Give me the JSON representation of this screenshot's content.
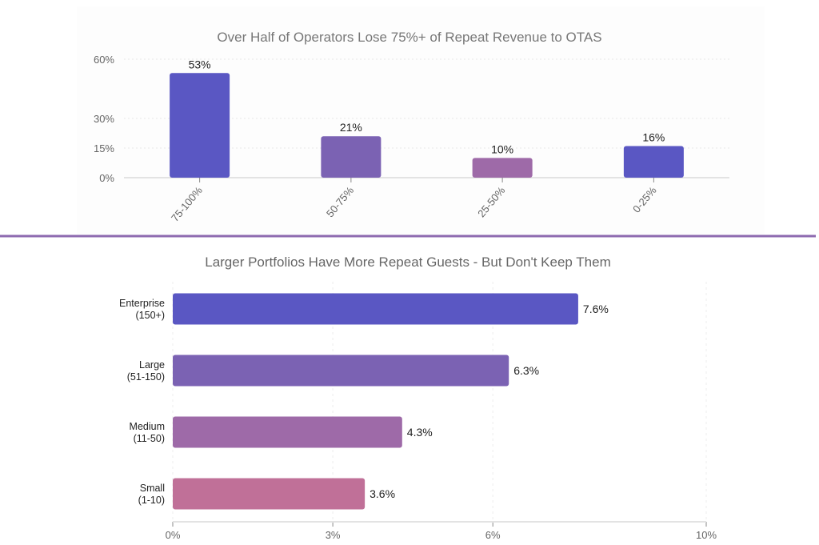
{
  "chart_data": [
    {
      "type": "bar",
      "orientation": "vertical",
      "title": "Over Half of Operators Lose 75%+ of Repeat Revenue to OTAS",
      "xlabel": "",
      "ylabel": "",
      "categories": [
        "75-100%",
        "50-75%",
        "25-50%",
        "0-25%"
      ],
      "values": [
        53,
        21,
        10,
        16
      ],
      "data_labels": [
        "53%",
        "21%",
        "10%",
        "16%"
      ],
      "colors": [
        "#5a57c3",
        "#7b62b3",
        "#9e6aa8",
        "#5a57c3"
      ],
      "yticks": [
        0,
        15,
        30,
        60
      ],
      "ytick_labels": [
        "0%",
        "15%",
        "30%",
        "60%"
      ],
      "ylim": [
        0,
        60
      ],
      "grid": true,
      "legend": "none"
    },
    {
      "type": "bar",
      "orientation": "horizontal",
      "title": "Larger Portfolios Have More Repeat Guests - But Don't Keep Them",
      "xlabel": "",
      "ylabel": "",
      "categories": [
        [
          "Enterprise",
          "(150+)"
        ],
        [
          "Large",
          "(51-150)"
        ],
        [
          "Medium",
          "(11-50)"
        ],
        [
          "Small",
          "(1-10)"
        ]
      ],
      "values": [
        7.6,
        6.3,
        4.3,
        3.6
      ],
      "data_labels": [
        "7.6%",
        "6.3%",
        "4.3%",
        "3.6%"
      ],
      "colors": [
        "#5a57c3",
        "#7b62b3",
        "#9e6aa8",
        "#c07098"
      ],
      "xticks": [
        0,
        3,
        6,
        10
      ],
      "xtick_labels": [
        "0%",
        "3%",
        "6%",
        "10%"
      ],
      "xlim": [
        0,
        10
      ],
      "grid": true,
      "legend": "none"
    }
  ],
  "divider_color": "#8e6bb0"
}
